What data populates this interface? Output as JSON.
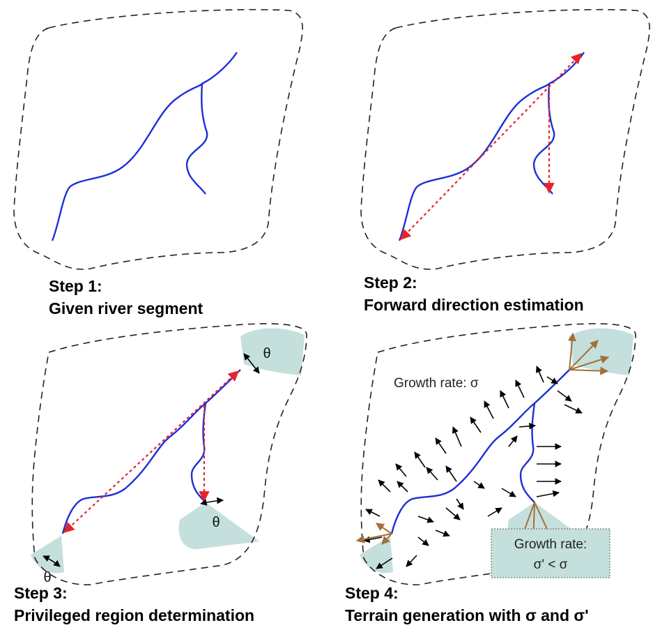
{
  "panels": [
    {
      "step": "Step 1:",
      "caption": "Given river segment"
    },
    {
      "step": "Step 2:",
      "caption": "Forward direction estimation"
    },
    {
      "step": "Step 3:",
      "caption": "Privileged region determination",
      "annotations": [
        "θ",
        "θ",
        "θ"
      ]
    },
    {
      "step": "Step 4:",
      "caption": "Terrain generation with σ and σ'",
      "annotations": [
        "Growth rate: σ",
        "Growth rate:",
        "σ' < σ"
      ]
    }
  ]
}
